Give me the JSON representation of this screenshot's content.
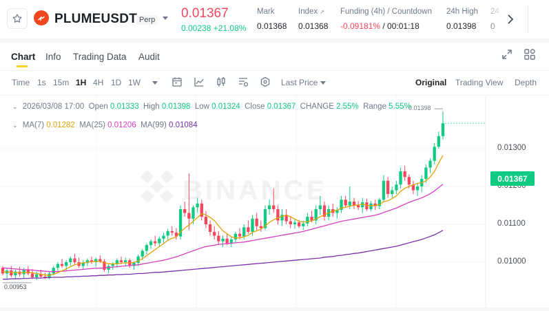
{
  "header": {
    "symbol": "PLUMEUSDT",
    "contract_type": "Perp",
    "last_price": "0.01367",
    "change": "0.00238 +21.08%",
    "stats": [
      {
        "label": "Mark",
        "value": "0.01368"
      },
      {
        "label": "Index",
        "value": "0.01368"
      },
      {
        "label": "Funding (4h) / Countdown",
        "funding": "-0.09181%",
        "countdown": "/ 00:01:18"
      },
      {
        "label": "24h High",
        "value": "0.01398"
      },
      {
        "label": "24",
        "value": "0"
      }
    ]
  },
  "tabs": [
    "Chart",
    "Info",
    "Trading Data",
    "Audit"
  ],
  "toolbar": {
    "time_label": "Time",
    "intervals": [
      "1s",
      "15m",
      "1H",
      "4H",
      "1D",
      "1W"
    ],
    "selected_interval": "1H",
    "price_type": "Last Price",
    "views": [
      "Original",
      "Trading View",
      "Depth"
    ],
    "selected_view": "Original"
  },
  "ohlc": {
    "date": "2026/03/08 17:00",
    "open_label": "Open",
    "open": "0.01333",
    "high_label": "High",
    "high": "0.01398",
    "low_label": "Low",
    "low": "0.01324",
    "close_label": "Close",
    "close": "0.01367",
    "change_label": "CHANGE",
    "change": "2.55%",
    "range_label": "Range",
    "range": "5.55%"
  },
  "ma": {
    "ma7_label": "MA(7)",
    "ma7": "0.01282",
    "ma25_label": "MA(25)",
    "ma25": "0.01206",
    "ma99_label": "MA(99)",
    "ma99": "0.01084"
  },
  "colors": {
    "up": "#0ecb81",
    "down": "#f6465d",
    "ma7": "#e1a30a",
    "ma25": "#d63fbf",
    "ma99": "#7a2fa8"
  },
  "chart_data": {
    "type": "candlestick",
    "y_ticks": [
      "0.01300",
      "0.01200",
      "0.01100",
      "0.01000"
    ],
    "current_price": "0.01367",
    "high_marker": "0.01398",
    "low_marker": "0.00953",
    "candles": [
      [
        0.00985,
        0.0099,
        0.00965,
        0.0097
      ],
      [
        0.0097,
        0.00985,
        0.00955,
        0.00978
      ],
      [
        0.00978,
        0.0099,
        0.0096,
        0.00965
      ],
      [
        0.00965,
        0.0098,
        0.00955,
        0.00975
      ],
      [
        0.00975,
        0.00988,
        0.00962,
        0.00968
      ],
      [
        0.00968,
        0.00985,
        0.00958,
        0.0098
      ],
      [
        0.0098,
        0.0099,
        0.00965,
        0.0097
      ],
      [
        0.0097,
        0.00982,
        0.00955,
        0.0096
      ],
      [
        0.0096,
        0.00975,
        0.00953,
        0.00968
      ],
      [
        0.00968,
        0.0098,
        0.00958,
        0.00962
      ],
      [
        0.00962,
        0.00972,
        0.00955,
        0.00958
      ],
      [
        0.00958,
        0.00975,
        0.00955,
        0.0097
      ],
      [
        0.0097,
        0.0099,
        0.00965,
        0.00985
      ],
      [
        0.00985,
        0.01,
        0.00975,
        0.00995
      ],
      [
        0.00995,
        0.01008,
        0.00985,
        0.0099
      ],
      [
        0.0099,
        0.01005,
        0.00978,
        0.01
      ],
      [
        0.01,
        0.01015,
        0.0099,
        0.0101
      ],
      [
        0.0101,
        0.01022,
        0.00995,
        0.01
      ],
      [
        0.01,
        0.01012,
        0.00985,
        0.0099
      ],
      [
        0.0099,
        0.01005,
        0.0098,
        0.00998
      ],
      [
        0.00998,
        0.0101,
        0.0099,
        0.01005
      ],
      [
        0.01005,
        0.01015,
        0.00995,
        0.01
      ],
      [
        0.01,
        0.01012,
        0.00988,
        0.01008
      ],
      [
        0.01008,
        0.01018,
        0.00998,
        0.01002
      ],
      [
        0.01002,
        0.01008,
        0.00975,
        0.0098
      ],
      [
        0.0098,
        0.00995,
        0.0097,
        0.0099
      ],
      [
        0.0099,
        0.01,
        0.0098,
        0.00995
      ],
      [
        0.00995,
        0.0101,
        0.00985,
        0.01005
      ],
      [
        0.01005,
        0.01015,
        0.00995,
        0.01
      ],
      [
        0.01,
        0.01012,
        0.0099,
        0.01005
      ],
      [
        0.01005,
        0.0101,
        0.00985,
        0.0099
      ],
      [
        0.0099,
        0.01002,
        0.0098,
        0.00998
      ],
      [
        0.00998,
        0.0102,
        0.0099,
        0.01015
      ],
      [
        0.01015,
        0.01035,
        0.01005,
        0.0103
      ],
      [
        0.0103,
        0.0105,
        0.0102,
        0.01045
      ],
      [
        0.01045,
        0.0106,
        0.01035,
        0.01055
      ],
      [
        0.01055,
        0.0107,
        0.01042,
        0.0105
      ],
      [
        0.0105,
        0.01068,
        0.0104,
        0.01062
      ],
      [
        0.01062,
        0.01078,
        0.0105,
        0.0107
      ],
      [
        0.0107,
        0.01088,
        0.01058,
        0.01082
      ],
      [
        0.01082,
        0.01095,
        0.0107,
        0.01078
      ],
      [
        0.01078,
        0.0109,
        0.0106,
        0.01068
      ],
      [
        0.01068,
        0.0115,
        0.0106,
        0.0114
      ],
      [
        0.0114,
        0.0116,
        0.0112,
        0.0113
      ],
      [
        0.0113,
        0.01235,
        0.01085,
        0.01115
      ],
      [
        0.01115,
        0.0115,
        0.011,
        0.01145
      ],
      [
        0.01145,
        0.0117,
        0.0113,
        0.01155
      ],
      [
        0.01155,
        0.01165,
        0.0111,
        0.0112
      ],
      [
        0.0112,
        0.01135,
        0.0109,
        0.011
      ],
      [
        0.011,
        0.0111,
        0.0107,
        0.0108
      ],
      [
        0.0108,
        0.01095,
        0.0106,
        0.0107
      ],
      [
        0.0107,
        0.01082,
        0.01045,
        0.01055
      ],
      [
        0.01055,
        0.0107,
        0.0104,
        0.01062
      ],
      [
        0.01062,
        0.01075,
        0.01045,
        0.0105
      ],
      [
        0.0105,
        0.01068,
        0.0104,
        0.0106
      ],
      [
        0.0106,
        0.0108,
        0.0105,
        0.01075
      ],
      [
        0.01075,
        0.0109,
        0.0106,
        0.01068
      ],
      [
        0.01068,
        0.011,
        0.0106,
        0.01092
      ],
      [
        0.01092,
        0.0111,
        0.01075,
        0.0108
      ],
      [
        0.0108,
        0.01125,
        0.0107,
        0.01115
      ],
      [
        0.01115,
        0.0113,
        0.01085,
        0.01095
      ],
      [
        0.01095,
        0.0111,
        0.0108,
        0.0109
      ],
      [
        0.0109,
        0.0115,
        0.01085,
        0.0114
      ],
      [
        0.0114,
        0.01165,
        0.01125,
        0.0115
      ],
      [
        0.0115,
        0.01195,
        0.0113,
        0.0114
      ],
      [
        0.0114,
        0.0115,
        0.011,
        0.0111
      ],
      [
        0.0111,
        0.0114,
        0.01095,
        0.01125
      ],
      [
        0.01125,
        0.0114,
        0.011,
        0.01108
      ],
      [
        0.01108,
        0.0112,
        0.0109,
        0.011
      ],
      [
        0.011,
        0.01115,
        0.01088,
        0.01105
      ],
      [
        0.01105,
        0.01112,
        0.0109,
        0.01095
      ],
      [
        0.01095,
        0.0111,
        0.01085,
        0.01102
      ],
      [
        0.01102,
        0.0113,
        0.01095,
        0.0112
      ],
      [
        0.0112,
        0.01135,
        0.01105,
        0.0111
      ],
      [
        0.0111,
        0.0115,
        0.011,
        0.0114
      ],
      [
        0.0114,
        0.01175,
        0.01125,
        0.0115
      ],
      [
        0.0115,
        0.0116,
        0.0111,
        0.0112
      ],
      [
        0.0112,
        0.0115,
        0.0111,
        0.0114
      ],
      [
        0.0114,
        0.01155,
        0.0112,
        0.0113
      ],
      [
        0.0113,
        0.01145,
        0.01115,
        0.01138
      ],
      [
        0.01138,
        0.01175,
        0.0113,
        0.01165
      ],
      [
        0.01165,
        0.01175,
        0.01145,
        0.0115
      ],
      [
        0.0115,
        0.012,
        0.0114,
        0.0116
      ],
      [
        0.0116,
        0.0117,
        0.0114,
        0.0115
      ],
      [
        0.0115,
        0.01162,
        0.01138,
        0.01145
      ],
      [
        0.01145,
        0.0117,
        0.0113,
        0.01158
      ],
      [
        0.01158,
        0.01168,
        0.01135,
        0.0114
      ],
      [
        0.0114,
        0.01162,
        0.01135,
        0.01155
      ],
      [
        0.01155,
        0.01165,
        0.01138,
        0.01148
      ],
      [
        0.01148,
        0.0117,
        0.0114,
        0.01165
      ],
      [
        0.01165,
        0.0123,
        0.01158,
        0.01215
      ],
      [
        0.01215,
        0.01225,
        0.0117,
        0.0118
      ],
      [
        0.0118,
        0.012,
        0.0117,
        0.0119
      ],
      [
        0.0119,
        0.01215,
        0.0118,
        0.01205
      ],
      [
        0.01205,
        0.0125,
        0.01195,
        0.0124
      ],
      [
        0.0124,
        0.01255,
        0.01215,
        0.01225
      ],
      [
        0.01225,
        0.01232,
        0.01195,
        0.01205
      ],
      [
        0.01205,
        0.01215,
        0.0118,
        0.0119
      ],
      [
        0.0119,
        0.0121,
        0.01175,
        0.012
      ],
      [
        0.012,
        0.0123,
        0.01185,
        0.0122
      ],
      [
        0.0122,
        0.01258,
        0.0121,
        0.0125
      ],
      [
        0.0125,
        0.01275,
        0.01235,
        0.01268
      ],
      [
        0.01268,
        0.01315,
        0.01258,
        0.01305
      ],
      [
        0.01305,
        0.01345,
        0.013,
        0.01333
      ],
      [
        0.01333,
        0.01398,
        0.01324,
        0.01367
      ]
    ],
    "ma7_series": [
      0.00975,
      0.00974,
      0.00973,
      0.00972,
      0.00972,
      0.00972,
      0.00973,
      0.00972,
      0.0097,
      0.00968,
      0.00966,
      0.00965,
      0.00968,
      0.00972,
      0.00977,
      0.00982,
      0.00988,
      0.00993,
      0.00996,
      0.00998,
      0.01,
      0.01001,
      0.01002,
      0.01002,
      0.00998,
      0.00996,
      0.00995,
      0.00996,
      0.00997,
      0.00998,
      0.00998,
      0.00999,
      0.01003,
      0.01009,
      0.01017,
      0.01025,
      0.01033,
      0.01041,
      0.01049,
      0.01058,
      0.01063,
      0.01066,
      0.0108,
      0.0109,
      0.01098,
      0.01108,
      0.01118,
      0.01128,
      0.01125,
      0.01118,
      0.0111,
      0.01096,
      0.01083,
      0.01075,
      0.01067,
      0.01064,
      0.01064,
      0.01067,
      0.01071,
      0.01079,
      0.01083,
      0.01087,
      0.01096,
      0.01105,
      0.01112,
      0.01117,
      0.01121,
      0.01124,
      0.0112,
      0.01114,
      0.01108,
      0.01106,
      0.01107,
      0.01109,
      0.01114,
      0.0112,
      0.01125,
      0.0113,
      0.01135,
      0.01137,
      0.01143,
      0.01145,
      0.01148,
      0.0115,
      0.01151,
      0.01153,
      0.0115,
      0.01149,
      0.0115,
      0.01152,
      0.0116,
      0.01162,
      0.01168,
      0.01175,
      0.01187,
      0.01195,
      0.012,
      0.01204,
      0.01208,
      0.0121,
      0.01215,
      0.01225,
      0.0124,
      0.01262,
      0.01282
    ],
    "ma25_series": [
      0.00985,
      0.00984,
      0.00983,
      0.00982,
      0.00981,
      0.0098,
      0.0098,
      0.00979,
      0.00978,
      0.00977,
      0.00976,
      0.00975,
      0.00975,
      0.00975,
      0.00976,
      0.00977,
      0.00978,
      0.00979,
      0.0098,
      0.00981,
      0.00982,
      0.00983,
      0.00984,
      0.00984,
      0.00985,
      0.00986,
      0.00987,
      0.00988,
      0.00989,
      0.0099,
      0.00991,
      0.00992,
      0.00993,
      0.00995,
      0.00997,
      0.00999,
      0.01001,
      0.01003,
      0.01005,
      0.01008,
      0.01011,
      0.01014,
      0.01018,
      0.01022,
      0.01026,
      0.0103,
      0.01034,
      0.01038,
      0.01041,
      0.01043,
      0.01045,
      0.01047,
      0.01048,
      0.01049,
      0.0105,
      0.01051,
      0.01052,
      0.01053,
      0.01055,
      0.01057,
      0.01059,
      0.01061,
      0.01063,
      0.01065,
      0.01067,
      0.01069,
      0.01071,
      0.01073,
      0.01075,
      0.01077,
      0.01079,
      0.01081,
      0.01084,
      0.01087,
      0.0109,
      0.01093,
      0.01096,
      0.01099,
      0.01102,
      0.01105,
      0.01108,
      0.0111,
      0.01112,
      0.01114,
      0.01116,
      0.01118,
      0.0112,
      0.01122,
      0.01124,
      0.01127,
      0.01131,
      0.01135,
      0.01139,
      0.01143,
      0.01148,
      0.01153,
      0.01158,
      0.01162,
      0.01166,
      0.0117,
      0.01175,
      0.01181,
      0.01188,
      0.01197,
      0.01206
    ],
    "ma99_series": [
      0.00955,
      0.00955,
      0.00956,
      0.00956,
      0.00956,
      0.00957,
      0.00957,
      0.00958,
      0.00958,
      0.00958,
      0.00959,
      0.00959,
      0.0096,
      0.0096,
      0.0096,
      0.00961,
      0.00961,
      0.00962,
      0.00962,
      0.00963,
      0.00963,
      0.00964,
      0.00964,
      0.00965,
      0.00965,
      0.00966,
      0.00966,
      0.00967,
      0.00967,
      0.00968,
      0.00968,
      0.00969,
      0.0097,
      0.0097,
      0.00971,
      0.00972,
      0.00973,
      0.00973,
      0.00974,
      0.00975,
      0.00976,
      0.00977,
      0.00978,
      0.00979,
      0.0098,
      0.00981,
      0.00982,
      0.00983,
      0.00984,
      0.00985,
      0.00986,
      0.00987,
      0.00988,
      0.00989,
      0.0099,
      0.00991,
      0.00992,
      0.00993,
      0.00994,
      0.00995,
      0.00996,
      0.00997,
      0.00998,
      0.00999,
      0.01,
      0.01001,
      0.01002,
      0.01003,
      0.01004,
      0.01005,
      0.01006,
      0.01007,
      0.01008,
      0.01009,
      0.0101,
      0.01011,
      0.01013,
      0.01014,
      0.01015,
      0.01017,
      0.01018,
      0.0102,
      0.01021,
      0.01023,
      0.01024,
      0.01026,
      0.01028,
      0.0103,
      0.01032,
      0.01034,
      0.01036,
      0.01038,
      0.0104,
      0.01042,
      0.01045,
      0.01048,
      0.01051,
      0.01054,
      0.01057,
      0.0106,
      0.01064,
      0.01068,
      0.01072,
      0.01078,
      0.01084
    ]
  }
}
